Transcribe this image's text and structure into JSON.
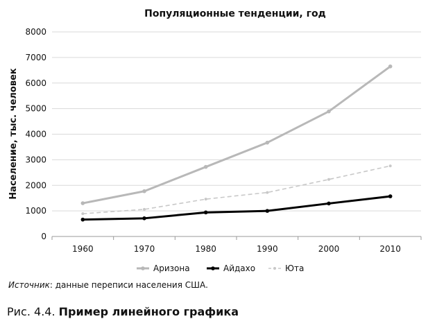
{
  "chart_data": {
    "type": "line",
    "title": "Популяционные тенденции, год",
    "xlabel": "",
    "ylabel": "Население, тыс. человек",
    "categories": [
      "1960",
      "1970",
      "1980",
      "1990",
      "2000",
      "2010"
    ],
    "ylim": [
      0,
      8000
    ],
    "yticks": [
      "0",
      "1000",
      "2000",
      "3000",
      "4000",
      "5000",
      "6000",
      "7000",
      "8000"
    ],
    "grid": true,
    "legend_position": "bottom",
    "series": [
      {
        "name": "Аризона",
        "values": [
          1300,
          1770,
          2720,
          3670,
          4890,
          6650
        ],
        "color": "#b8b8b8",
        "style": "solid-thick"
      },
      {
        "name": "Айдахо",
        "values": [
          660,
          710,
          940,
          1000,
          1290,
          1570
        ],
        "color": "#000000",
        "style": "solid-thick"
      },
      {
        "name": "Юта",
        "values": [
          890,
          1060,
          1460,
          1720,
          2230,
          2760
        ],
        "color": "#c8c8c8",
        "style": "dashed"
      }
    ]
  },
  "source": {
    "lead": "Источник",
    "text": ": данные переписи населения США."
  },
  "caption": {
    "prefix": "Рис. 4.4. ",
    "title": "Пример линейного графика"
  }
}
